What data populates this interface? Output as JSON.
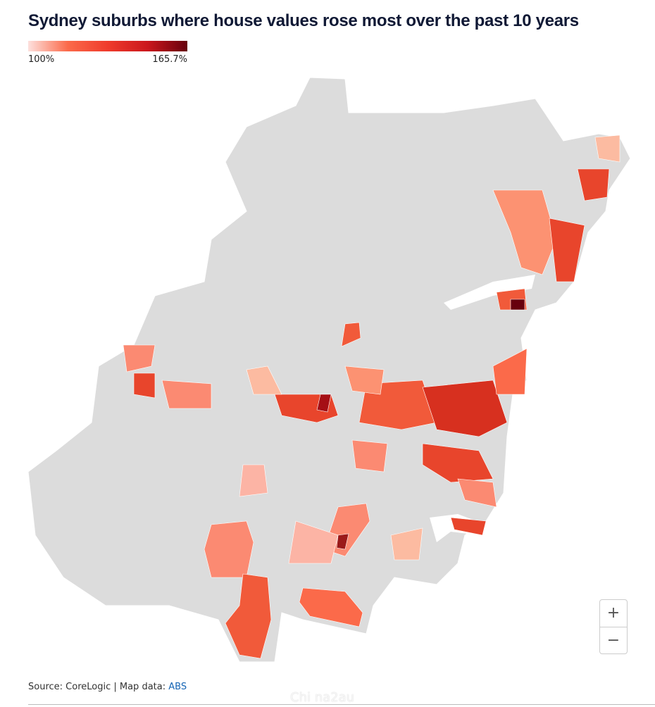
{
  "header": {
    "title": "Sydney suburbs where house values rose most over the past 10 years"
  },
  "legend": {
    "min_label": "100%",
    "max_label": "165.7%",
    "colors": [
      "#fde0dd",
      "#fb6a4a",
      "#ef3b2c",
      "#cb181d",
      "#67000d"
    ]
  },
  "zoom": {
    "in": "+",
    "out": "−"
  },
  "footer": {
    "source": "Source: CoreLogic | Map data:",
    "link": "ABS",
    "watermark": "Chi na2au"
  }
}
